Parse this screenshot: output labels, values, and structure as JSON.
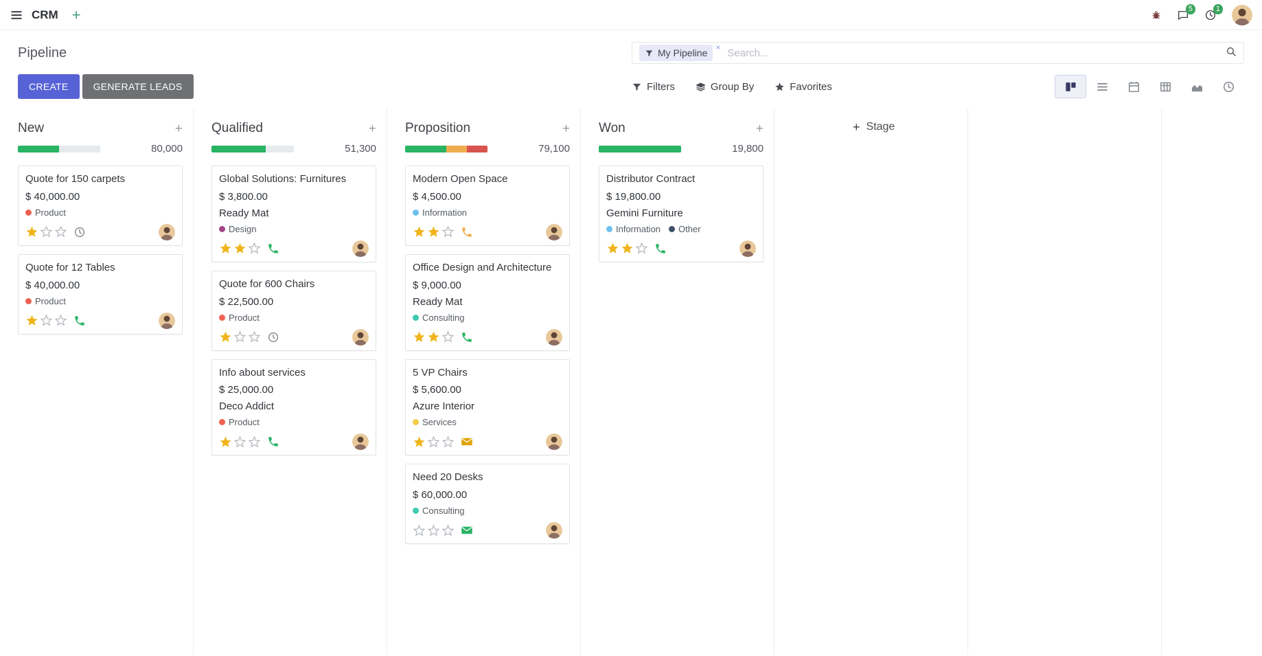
{
  "navbar": {
    "app_name": "CRM",
    "messages_badge": "5",
    "activities_badge": "1"
  },
  "control_panel": {
    "title": "Pipeline",
    "search": {
      "facet_label": "My Pipeline",
      "remove_label": "×",
      "placeholder": "Search..."
    },
    "create_label": "CREATE",
    "generate_leads_label": "GENERATE LEADS",
    "filters_label": "Filters",
    "group_by_label": "Group By",
    "favorites_label": "Favorites"
  },
  "colors": {
    "primary": "#5762d6",
    "success": "#28b463",
    "warning": "#f0ad4e",
    "danger": "#d9534f",
    "star_gold": "#f0b41a"
  },
  "board": {
    "add_stage_label": "Stage",
    "columns": [
      {
        "title": "New",
        "counter": "80,000",
        "progress": [
          {
            "color": "#28b463",
            "pct": 50
          }
        ],
        "cards": [
          {
            "title": "Quote for 150 carpets",
            "amount": "$ 40,000.00",
            "tags": [
              {
                "label": "Product",
                "color": "#f06050"
              }
            ],
            "stars": 1,
            "activity": {
              "icon": "clock",
              "color": "#8a8f94"
            }
          },
          {
            "title": "Quote for 12 Tables",
            "amount": "$ 40,000.00",
            "tags": [
              {
                "label": "Product",
                "color": "#f06050"
              }
            ],
            "stars": 1,
            "activity": {
              "icon": "phone",
              "color": "#28b463"
            }
          }
        ]
      },
      {
        "title": "Qualified",
        "counter": "51,300",
        "progress": [
          {
            "color": "#28b463",
            "pct": 66
          }
        ],
        "cards": [
          {
            "title": "Global Solutions: Furnitures",
            "amount": "$ 3,800.00",
            "partner": "Ready Mat",
            "tags": [
              {
                "label": "Design",
                "color": "#a24689"
              }
            ],
            "stars": 2,
            "activity": {
              "icon": "phone",
              "color": "#28b463"
            }
          },
          {
            "title": "Quote for 600 Chairs",
            "amount": "$ 22,500.00",
            "tags": [
              {
                "label": "Product",
                "color": "#f06050"
              }
            ],
            "stars": 1,
            "activity": {
              "icon": "clock",
              "color": "#8a8f94"
            }
          },
          {
            "title": "Info about services",
            "amount": "$ 25,000.00",
            "partner": "Deco Addict",
            "tags": [
              {
                "label": "Product",
                "color": "#f06050"
              }
            ],
            "stars": 1,
            "activity": {
              "icon": "phone",
              "color": "#28b463"
            }
          }
        ]
      },
      {
        "title": "Proposition",
        "counter": "79,100",
        "progress": [
          {
            "color": "#28b463",
            "pct": 50
          },
          {
            "color": "#f0ad4e",
            "pct": 25
          },
          {
            "color": "#d9534f",
            "pct": 25
          }
        ],
        "cards": [
          {
            "title": "Modern Open Space",
            "amount": "$ 4,500.00",
            "tags": [
              {
                "label": "Information",
                "color": "#6cc1ed"
              }
            ],
            "stars": 2,
            "activity": {
              "icon": "phone",
              "color": "#f0ad4e"
            }
          },
          {
            "title": "Office Design and Architecture",
            "amount": "$ 9,000.00",
            "partner": "Ready Mat",
            "tags": [
              {
                "label": "Consulting",
                "color": "#3fc9b0"
              }
            ],
            "stars": 2,
            "activity": {
              "icon": "phone",
              "color": "#28b463"
            }
          },
          {
            "title": "5 VP Chairs",
            "amount": "$ 5,600.00",
            "partner": "Azure Interior",
            "tags": [
              {
                "label": "Services",
                "color": "#f3cc45"
              }
            ],
            "stars": 1,
            "activity": {
              "icon": "envelope",
              "color": "#dfa300"
            }
          },
          {
            "title": "Need 20 Desks",
            "amount": "$ 60,000.00",
            "tags": [
              {
                "label": "Consulting",
                "color": "#3fc9b0"
              }
            ],
            "stars": 0,
            "activity": {
              "icon": "envelope",
              "color": "#28b463"
            }
          }
        ]
      },
      {
        "title": "Won",
        "counter": "19,800",
        "progress": [
          {
            "color": "#28b463",
            "pct": 100
          }
        ],
        "cards": [
          {
            "title": "Distributor Contract",
            "amount": "$ 19,800.00",
            "partner": "Gemini Furniture",
            "tags": [
              {
                "label": "Information",
                "color": "#6cc1ed"
              },
              {
                "label": "Other",
                "color": "#3e4f61"
              }
            ],
            "stars": 2,
            "activity": {
              "icon": "phone",
              "color": "#28b463"
            }
          }
        ]
      }
    ]
  }
}
